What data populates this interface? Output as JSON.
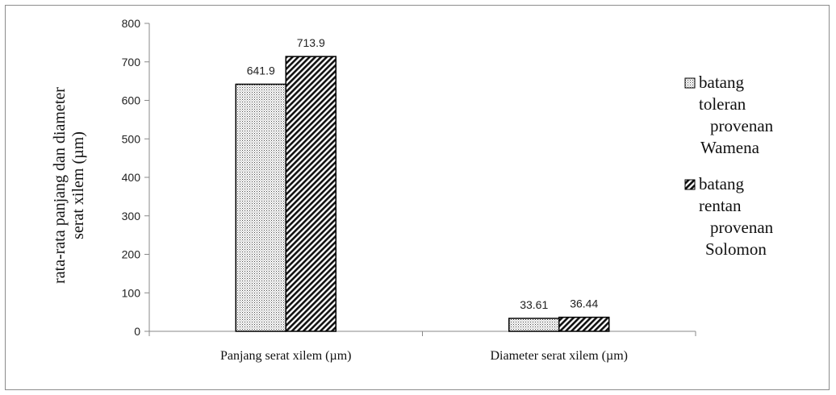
{
  "chart_data": {
    "type": "bar",
    "categories": [
      "Panjang serat xilem (µm)",
      "Diameter serat xilem (µm)"
    ],
    "series": [
      {
        "name_lines": [
          "batang",
          "toleran",
          "provenan",
          "Wamena"
        ],
        "values": [
          641.9,
          33.61
        ],
        "labels": [
          "641.9",
          "33.61"
        ],
        "pattern": "dots"
      },
      {
        "name_lines": [
          "batang",
          "rentan",
          "provenan",
          "Solomon"
        ],
        "values": [
          713.9,
          36.44
        ],
        "labels": [
          "713.9",
          "36.44"
        ],
        "pattern": "hatch"
      }
    ],
    "ylabel_lines": [
      "rata-rata panjang dan diameter",
      "serat xilem (µm)"
    ],
    "ylim": [
      0,
      800
    ],
    "yticks": [
      "0",
      "100",
      "200",
      "300",
      "400",
      "500",
      "600",
      "700",
      "800"
    ],
    "grid": false,
    "legend_position": "right"
  }
}
